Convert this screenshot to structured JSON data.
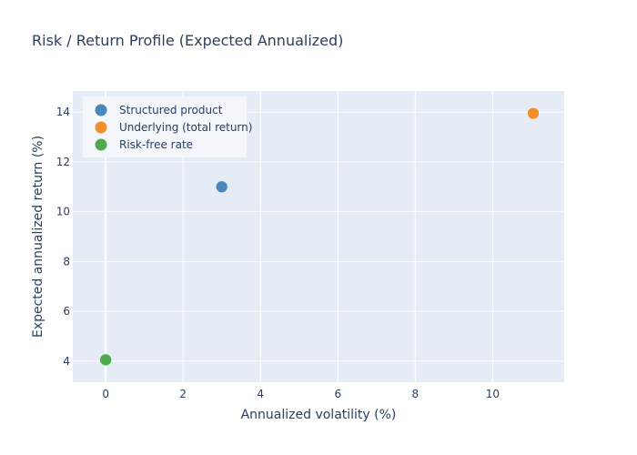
{
  "chart_data": {
    "type": "scatter",
    "title": "Risk / Return Profile (Expected Annualized)",
    "xlabel": "Annualized volatility (%)",
    "ylabel": "Expected annualized return (%)",
    "xlim": [
      -0.85,
      11.85
    ],
    "ylim": [
      3.15,
      14.85
    ],
    "x_ticks": [
      0,
      2,
      4,
      6,
      8,
      10
    ],
    "y_ticks": [
      4,
      6,
      8,
      10,
      12,
      14
    ],
    "grid": true,
    "legend_position": "top-left",
    "series": [
      {
        "name": "Structured product",
        "color": "#4a86bb",
        "points": [
          {
            "x": 3.0,
            "y": 11.0
          }
        ]
      },
      {
        "name": "Underlying (total return)",
        "color": "#f28e2b",
        "points": [
          {
            "x": 11.05,
            "y": 13.95
          }
        ]
      },
      {
        "name": "Risk-free rate",
        "color": "#4faa4f",
        "points": [
          {
            "x": 0.0,
            "y": 4.05
          }
        ]
      }
    ],
    "plot_bg_color": "#e5ecf6",
    "grid_color": "#ffffff"
  }
}
